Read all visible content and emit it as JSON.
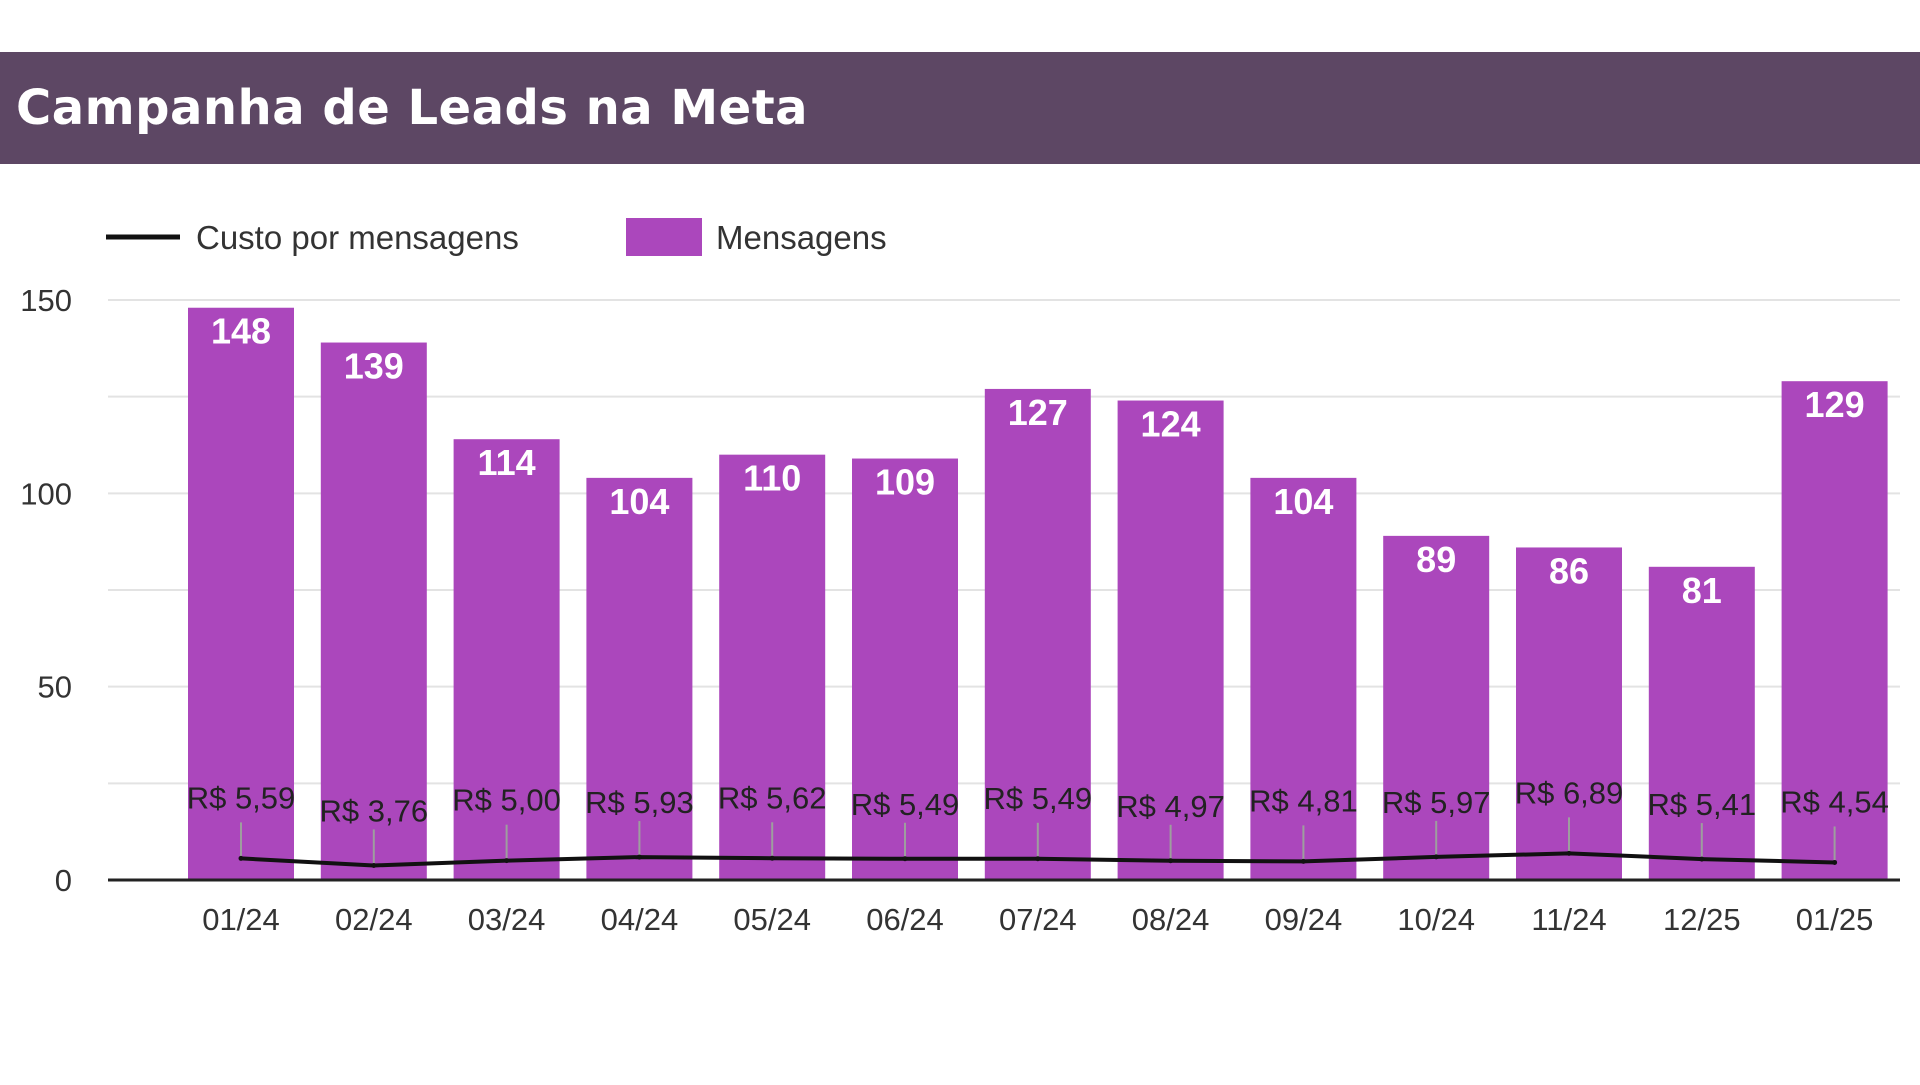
{
  "header": {
    "title": "Campanha de Leads na Meta",
    "background_color": "#5d4764"
  },
  "chart_data": {
    "type": "bar",
    "title": "",
    "categories": [
      "01/24",
      "02/24",
      "03/24",
      "04/24",
      "05/24",
      "06/24",
      "07/24",
      "08/24",
      "09/24",
      "10/24",
      "11/24",
      "12/25",
      "01/25"
    ],
    "series": [
      {
        "name": "Mensagens",
        "type": "bar",
        "color": "#ab47bc",
        "values": [
          148,
          139,
          114,
          104,
          110,
          109,
          127,
          124,
          104,
          89,
          86,
          81,
          129
        ],
        "data_labels": [
          "148",
          "139",
          "114",
          "104",
          "110",
          "109",
          "127",
          "124",
          "104",
          "89",
          "86",
          "81",
          "129"
        ]
      },
      {
        "name": "Custo por mensagens",
        "type": "line",
        "color": "#111111",
        "values": [
          5.59,
          3.76,
          5.0,
          5.93,
          5.62,
          5.49,
          5.49,
          4.97,
          4.81,
          5.97,
          6.89,
          5.41,
          4.54
        ],
        "data_labels": [
          "R$ 5,59",
          "R$ 3,76",
          "R$ 5,00",
          "R$ 5,93",
          "R$ 5,62",
          "R$ 5,49",
          "R$ 5,49",
          "R$ 4,97",
          "R$ 4,81",
          "R$ 5,97",
          "R$ 6,89",
          "R$ 5,41",
          "R$ 4,54"
        ]
      }
    ],
    "yticks": [
      "0",
      "50",
      "100",
      "150"
    ],
    "ylim": [
      0,
      150
    ],
    "grid": true,
    "legend_position": "top-left",
    "legend": [
      {
        "label": "Custo por mensagens",
        "symbol": "line",
        "color": "#111111"
      },
      {
        "label": "Mensagens",
        "symbol": "box",
        "color": "#ab47bc"
      }
    ]
  }
}
